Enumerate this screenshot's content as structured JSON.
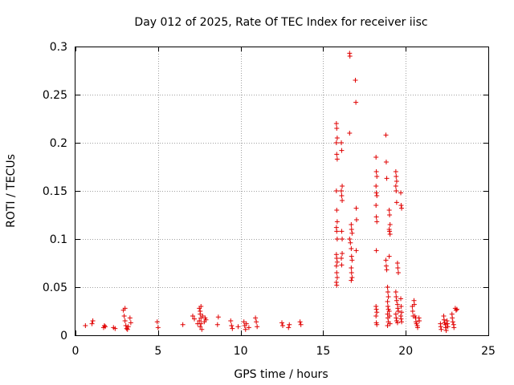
{
  "chart_data": {
    "type": "scatter",
    "title": "Day 012 of 2025, Rate Of TEC Index for receiver iisc",
    "xlabel": "GPS time / hours",
    "ylabel": "ROTI / TECUs",
    "xlim": [
      0,
      25
    ],
    "ylim": [
      0,
      0.3
    ],
    "xticks": [
      0,
      5,
      10,
      15,
      20,
      25
    ],
    "xtick_labels": [
      "0",
      "5",
      "10",
      "15",
      "20",
      "25"
    ],
    "yticks": [
      0,
      0.05,
      0.1,
      0.15,
      0.2,
      0.25,
      0.3
    ],
    "ytick_labels": [
      "0",
      "0.05",
      "0.1",
      "0.15",
      "0.2",
      "0.25",
      "0.3"
    ],
    "grid": true,
    "marker": "plus",
    "color": "#e00000",
    "points": [
      [
        0.6,
        0.01
      ],
      [
        1.0,
        0.012
      ],
      [
        1.05,
        0.015
      ],
      [
        1.7,
        0.008
      ],
      [
        1.75,
        0.01
      ],
      [
        1.8,
        0.009
      ],
      [
        2.3,
        0.008
      ],
      [
        2.4,
        0.007
      ],
      [
        2.9,
        0.026
      ],
      [
        2.95,
        0.02
      ],
      [
        3.0,
        0.028
      ],
      [
        3.0,
        0.015
      ],
      [
        3.05,
        0.01
      ],
      [
        3.1,
        0.007
      ],
      [
        3.15,
        0.006
      ],
      [
        3.2,
        0.009
      ],
      [
        3.3,
        0.018
      ],
      [
        3.35,
        0.013
      ],
      [
        4.95,
        0.014
      ],
      [
        5.0,
        0.008
      ],
      [
        6.5,
        0.011
      ],
      [
        7.1,
        0.02
      ],
      [
        7.2,
        0.017
      ],
      [
        7.4,
        0.012
      ],
      [
        7.5,
        0.028
      ],
      [
        7.55,
        0.025
      ],
      [
        7.6,
        0.03
      ],
      [
        7.55,
        0.022
      ],
      [
        7.6,
        0.018
      ],
      [
        7.5,
        0.015
      ],
      [
        7.6,
        0.012
      ],
      [
        7.55,
        0.009
      ],
      [
        7.65,
        0.006
      ],
      [
        7.7,
        0.02
      ],
      [
        7.8,
        0.014
      ],
      [
        7.85,
        0.018
      ],
      [
        7.9,
        0.016
      ],
      [
        8.6,
        0.011
      ],
      [
        8.65,
        0.019
      ],
      [
        9.4,
        0.015
      ],
      [
        9.45,
        0.01
      ],
      [
        9.5,
        0.007
      ],
      [
        9.85,
        0.009
      ],
      [
        10.2,
        0.014
      ],
      [
        10.25,
        0.01
      ],
      [
        10.3,
        0.006
      ],
      [
        10.35,
        0.012
      ],
      [
        10.5,
        0.008
      ],
      [
        10.9,
        0.018
      ],
      [
        10.95,
        0.014
      ],
      [
        11.0,
        0.009
      ],
      [
        12.5,
        0.013
      ],
      [
        12.55,
        0.01
      ],
      [
        12.9,
        0.008
      ],
      [
        12.95,
        0.011
      ],
      [
        13.6,
        0.014
      ],
      [
        13.65,
        0.011
      ],
      [
        15.8,
        0.22
      ],
      [
        15.82,
        0.215
      ],
      [
        15.85,
        0.205
      ],
      [
        15.8,
        0.2
      ],
      [
        15.82,
        0.188
      ],
      [
        15.85,
        0.183
      ],
      [
        15.8,
        0.15
      ],
      [
        15.82,
        0.13
      ],
      [
        15.85,
        0.118
      ],
      [
        15.8,
        0.112
      ],
      [
        15.82,
        0.108
      ],
      [
        15.85,
        0.1
      ],
      [
        15.8,
        0.084
      ],
      [
        15.82,
        0.08
      ],
      [
        15.85,
        0.076
      ],
      [
        15.8,
        0.072
      ],
      [
        15.82,
        0.065
      ],
      [
        15.85,
        0.06
      ],
      [
        15.8,
        0.055
      ],
      [
        15.82,
        0.052
      ],
      [
        16.1,
        0.2
      ],
      [
        16.12,
        0.192
      ],
      [
        16.15,
        0.155
      ],
      [
        16.1,
        0.15
      ],
      [
        16.12,
        0.145
      ],
      [
        16.15,
        0.14
      ],
      [
        16.12,
        0.108
      ],
      [
        16.15,
        0.1
      ],
      [
        16.15,
        0.085
      ],
      [
        16.1,
        0.08
      ],
      [
        16.12,
        0.073
      ],
      [
        16.6,
        0.293
      ],
      [
        16.62,
        0.29
      ],
      [
        16.6,
        0.21
      ],
      [
        16.6,
        0.1
      ],
      [
        16.65,
        0.096
      ],
      [
        16.7,
        0.115
      ],
      [
        16.72,
        0.11
      ],
      [
        16.75,
        0.106
      ],
      [
        16.7,
        0.09
      ],
      [
        16.72,
        0.082
      ],
      [
        16.75,
        0.078
      ],
      [
        16.7,
        0.07
      ],
      [
        16.72,
        0.065
      ],
      [
        16.75,
        0.06
      ],
      [
        16.7,
        0.057
      ],
      [
        16.95,
        0.265
      ],
      [
        16.98,
        0.242
      ],
      [
        17.0,
        0.132
      ],
      [
        17.02,
        0.12
      ],
      [
        17.0,
        0.088
      ],
      [
        18.2,
        0.185
      ],
      [
        18.22,
        0.17
      ],
      [
        18.25,
        0.165
      ],
      [
        18.2,
        0.155
      ],
      [
        18.22,
        0.148
      ],
      [
        18.25,
        0.145
      ],
      [
        18.2,
        0.135
      ],
      [
        18.22,
        0.123
      ],
      [
        18.25,
        0.118
      ],
      [
        18.22,
        0.088
      ],
      [
        18.2,
        0.03
      ],
      [
        18.22,
        0.027
      ],
      [
        18.25,
        0.024
      ],
      [
        18.2,
        0.02
      ],
      [
        18.22,
        0.013
      ],
      [
        18.25,
        0.011
      ],
      [
        18.8,
        0.078
      ],
      [
        18.82,
        0.072
      ],
      [
        18.85,
        0.068
      ],
      [
        18.8,
        0.208
      ],
      [
        18.82,
        0.18
      ],
      [
        18.85,
        0.163
      ],
      [
        19.0,
        0.13
      ],
      [
        19.02,
        0.125
      ],
      [
        19.05,
        0.115
      ],
      [
        19.0,
        0.11
      ],
      [
        19.02,
        0.108
      ],
      [
        19.05,
        0.105
      ],
      [
        19.0,
        0.082
      ],
      [
        18.9,
        0.05
      ],
      [
        18.92,
        0.045
      ],
      [
        18.95,
        0.04
      ],
      [
        18.9,
        0.035
      ],
      [
        18.92,
        0.03
      ],
      [
        18.95,
        0.027
      ],
      [
        18.9,
        0.022
      ],
      [
        18.92,
        0.018
      ],
      [
        18.95,
        0.014
      ],
      [
        18.9,
        0.01
      ],
      [
        19.0,
        0.025
      ],
      [
        19.02,
        0.02
      ],
      [
        19.05,
        0.012
      ],
      [
        19.4,
        0.17
      ],
      [
        19.42,
        0.165
      ],
      [
        19.45,
        0.16
      ],
      [
        19.4,
        0.155
      ],
      [
        19.42,
        0.15
      ],
      [
        19.45,
        0.138
      ],
      [
        19.5,
        0.075
      ],
      [
        19.52,
        0.07
      ],
      [
        19.55,
        0.065
      ],
      [
        19.4,
        0.045
      ],
      [
        19.42,
        0.04
      ],
      [
        19.45,
        0.036
      ],
      [
        19.5,
        0.032
      ],
      [
        19.52,
        0.028
      ],
      [
        19.55,
        0.025
      ],
      [
        19.4,
        0.022
      ],
      [
        19.42,
        0.018
      ],
      [
        19.45,
        0.015
      ],
      [
        19.5,
        0.013
      ],
      [
        19.7,
        0.148
      ],
      [
        19.72,
        0.135
      ],
      [
        19.75,
        0.132
      ],
      [
        19.7,
        0.038
      ],
      [
        19.72,
        0.03
      ],
      [
        19.75,
        0.024
      ],
      [
        19.7,
        0.02
      ],
      [
        19.72,
        0.017
      ],
      [
        19.75,
        0.014
      ],
      [
        20.4,
        0.03
      ],
      [
        20.42,
        0.025
      ],
      [
        20.45,
        0.02
      ],
      [
        20.5,
        0.036
      ],
      [
        20.52,
        0.032
      ],
      [
        20.55,
        0.02
      ],
      [
        20.6,
        0.018
      ],
      [
        20.62,
        0.014
      ],
      [
        20.65,
        0.012
      ],
      [
        20.7,
        0.01
      ],
      [
        20.72,
        0.008
      ],
      [
        20.8,
        0.018
      ],
      [
        20.82,
        0.015
      ],
      [
        22.1,
        0.012
      ],
      [
        22.12,
        0.009
      ],
      [
        22.15,
        0.006
      ],
      [
        22.3,
        0.02
      ],
      [
        22.32,
        0.016
      ],
      [
        22.35,
        0.013
      ],
      [
        22.4,
        0.011
      ],
      [
        22.42,
        0.008
      ],
      [
        22.45,
        0.005
      ],
      [
        22.5,
        0.015
      ],
      [
        22.52,
        0.012
      ],
      [
        22.55,
        0.009
      ],
      [
        22.8,
        0.022
      ],
      [
        22.82,
        0.018
      ],
      [
        22.85,
        0.014
      ],
      [
        22.9,
        0.011
      ],
      [
        22.92,
        0.008
      ],
      [
        23.0,
        0.028
      ],
      [
        23.05,
        0.026
      ],
      [
        23.1,
        0.027
      ]
    ]
  }
}
